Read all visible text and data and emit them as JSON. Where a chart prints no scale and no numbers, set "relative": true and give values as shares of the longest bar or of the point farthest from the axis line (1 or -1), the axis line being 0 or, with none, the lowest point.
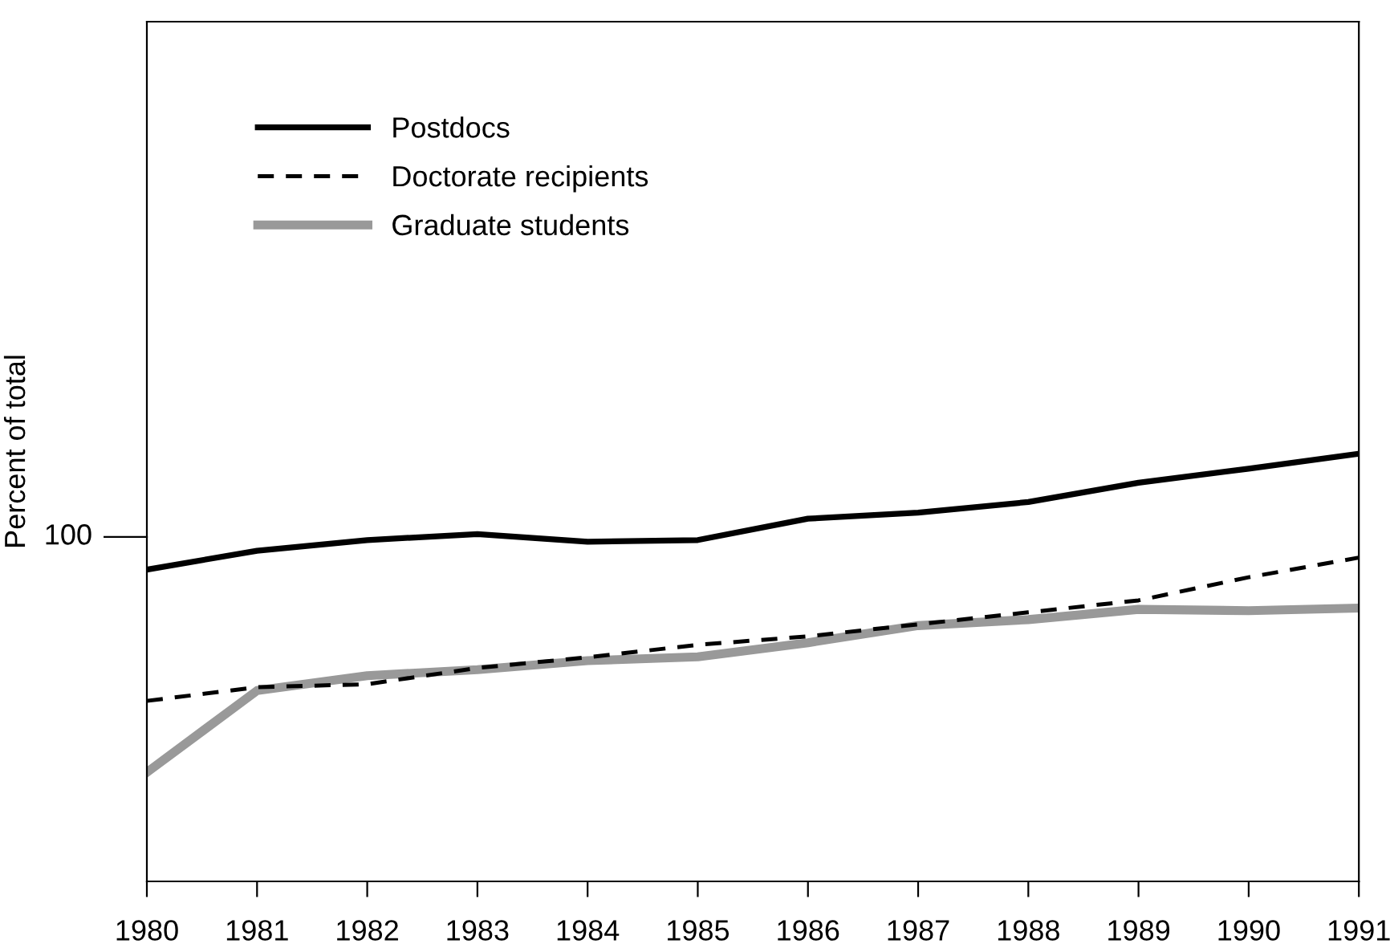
{
  "chart_data": {
    "type": "line",
    "ylabel": "Percent of total",
    "relative": true,
    "x": [
      1980,
      1981,
      1982,
      1983,
      1984,
      1985,
      1986,
      1987,
      1988,
      1989,
      1990,
      1991
    ],
    "xlim": [
      1980,
      1991
    ],
    "xticks": [
      1980,
      1981,
      1982,
      1983,
      1984,
      1985,
      1986,
      1987,
      1988,
      1989,
      1990,
      1991
    ],
    "series": [
      {
        "name": "Postdocs",
        "color": "#000000",
        "line_style": "solid",
        "values": [
          0.729,
          0.773,
          0.798,
          0.812,
          0.794,
          0.798,
          0.848,
          0.862,
          0.887,
          0.932,
          0.965,
          1
        ]
      },
      {
        "name": "Doctorate recipients",
        "color": "#000000",
        "line_style": "dashed",
        "values": [
          0.422,
          0.454,
          0.461,
          0.499,
          0.524,
          0.553,
          0.573,
          0.601,
          0.629,
          0.657,
          0.711,
          0.757
        ]
      },
      {
        "name": "Graduate students",
        "color": "#999999",
        "line_style": "solid",
        "values": [
          0.255,
          0.446,
          0.481,
          0.495,
          0.516,
          0.525,
          0.558,
          0.598,
          0.612,
          0.636,
          0.633,
          0.639
        ]
      }
    ],
    "annotations": [
      "100"
    ],
    "legend": "top left",
    "grid": false,
    "marker": "none"
  }
}
